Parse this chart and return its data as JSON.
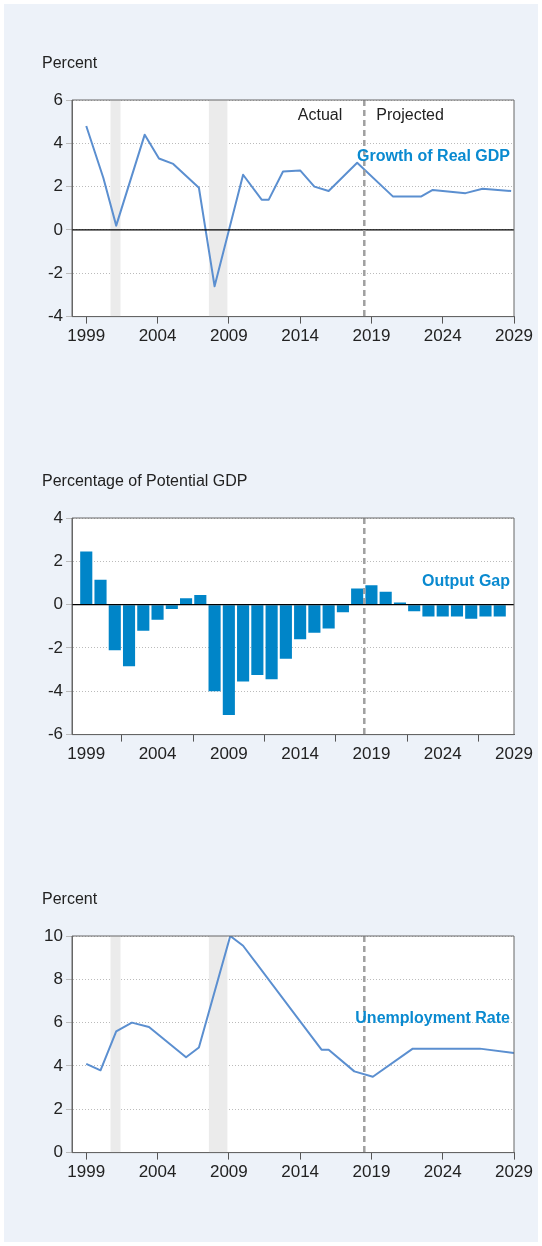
{
  "chart_data": [
    {
      "type": "line",
      "ylabel": "Percent",
      "x": [
        1999,
        2000.2,
        2001.1,
        2003.1,
        2004.1,
        2005.1,
        2006.9,
        2008.0,
        2010.0,
        2011.3,
        2011.8,
        2012.8,
        2014.0,
        2015.0,
        2016.0,
        2018.0,
        2020.5,
        2022.5,
        2023.3,
        2025.6,
        2026.8,
        2028.8
      ],
      "series": [
        {
          "name": "Growth of Real GDP",
          "color": "#5b8fd0",
          "values": [
            4.8,
            2.4,
            0.2,
            4.4,
            3.3,
            3.05,
            1.95,
            -2.6,
            2.55,
            1.4,
            1.4,
            2.7,
            2.75,
            2.0,
            1.8,
            3.1,
            1.55,
            1.55,
            1.85,
            1.7,
            1.9,
            1.8
          ]
        }
      ],
      "xlim": [
        1998,
        2029
      ],
      "xticks": [
        1999,
        2004,
        2009,
        2014,
        2019,
        2024,
        2029
      ],
      "ylim": [
        -4,
        6
      ],
      "yticks": [
        -4,
        -2,
        0,
        2,
        4,
        6
      ],
      "grid": "y",
      "marker": "none",
      "bands": [
        {
          "axis": "x",
          "from": 2000.7,
          "to": 2001.4,
          "color": "#ebebeb"
        },
        {
          "axis": "x",
          "from": 2007.6,
          "to": 2008.9,
          "color": "#ebebeb"
        }
      ],
      "ref_lines": [
        {
          "axis": "y",
          "value": 0,
          "color": "#000000",
          "line_style": "solid"
        },
        {
          "axis": "x",
          "value": 2018.5,
          "color": "#a0a0a0",
          "line_style": "dashed"
        }
      ],
      "annotations": [
        "Actual",
        "Projected"
      ]
    },
    {
      "type": "bar",
      "ylabel": "Percentage of Potential GDP",
      "x": [
        1999,
        2000,
        2001,
        2002,
        2003,
        2004,
        2005,
        2006,
        2007,
        2008,
        2009,
        2010,
        2011,
        2012,
        2013,
        2014,
        2015,
        2016,
        2017,
        2018,
        2019,
        2020,
        2021,
        2022,
        2023,
        2024,
        2025,
        2026,
        2027,
        2028
      ],
      "series": [
        {
          "name": "Output Gap",
          "color": "#0085c8",
          "values": [
            2.45,
            1.15,
            -2.1,
            -2.85,
            -1.2,
            -0.7,
            -0.2,
            0.3,
            0.45,
            -4.0,
            -5.1,
            -3.55,
            -3.25,
            -3.45,
            -2.5,
            -1.6,
            -1.3,
            -1.1,
            -0.35,
            0.75,
            0.9,
            0.6,
            0.1,
            -0.3,
            -0.55,
            -0.55,
            -0.55,
            -0.65,
            -0.55,
            -0.55
          ]
        }
      ],
      "xlim": [
        1998,
        2029
      ],
      "xticks": [
        1999,
        2004,
        2009,
        2014,
        2019,
        2024,
        2029
      ],
      "ylim": [
        -6,
        4
      ],
      "yticks": [
        -6,
        -4,
        -2,
        0,
        2,
        4
      ],
      "grid": "y",
      "ref_lines": [
        {
          "axis": "y",
          "value": 0,
          "color": "#000000",
          "line_style": "solid"
        },
        {
          "axis": "x",
          "value": 2018.5,
          "color": "#a0a0a0",
          "line_style": "dashed"
        }
      ]
    },
    {
      "type": "line",
      "ylabel": "Percent",
      "x": [
        1999,
        2000.0,
        2001.1,
        2002.2,
        2003.4,
        2006.0,
        2006.9,
        2009.1,
        2010.0,
        2015.5,
        2016.0,
        2017.8,
        2019.1,
        2021.9,
        2026.6,
        2029
      ],
      "series": [
        {
          "name": "Unemployment Rate",
          "color": "#5b8fd0",
          "values": [
            4.1,
            3.8,
            5.6,
            6.0,
            5.8,
            4.4,
            4.85,
            10.0,
            9.55,
            4.75,
            4.75,
            3.75,
            3.5,
            4.8,
            4.8,
            4.6
          ]
        }
      ],
      "xlim": [
        1998,
        2029
      ],
      "xticks": [
        1999,
        2004,
        2009,
        2014,
        2019,
        2024,
        2029
      ],
      "ylim": [
        0,
        10
      ],
      "yticks": [
        0,
        2,
        4,
        6,
        8,
        10
      ],
      "grid": "y",
      "marker": "none",
      "bands": [
        {
          "axis": "x",
          "from": 2000.7,
          "to": 2001.4,
          "color": "#ebebeb"
        },
        {
          "axis": "x",
          "from": 2007.6,
          "to": 2008.9,
          "color": "#ebebeb"
        }
      ],
      "ref_lines": [
        {
          "axis": "x",
          "value": 2018.5,
          "color": "#a0a0a0",
          "line_style": "dashed"
        }
      ]
    }
  ]
}
